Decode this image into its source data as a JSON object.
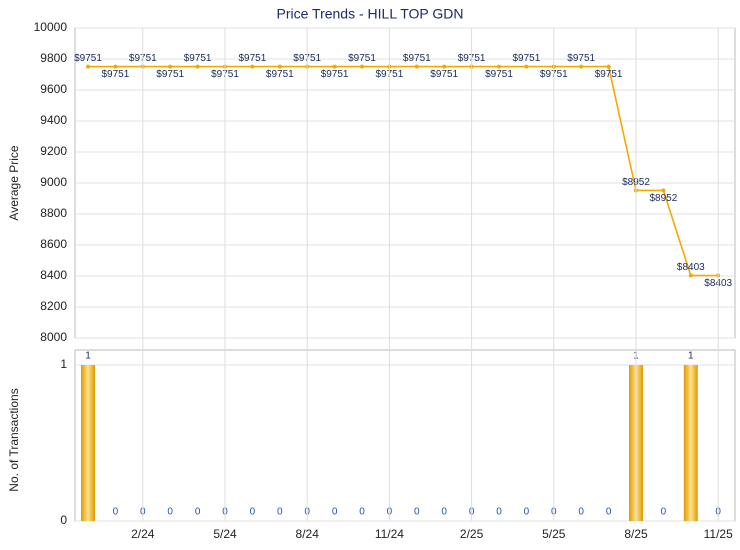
{
  "chart_data": [
    {
      "type": "line",
      "title": "Price Trends - HILL TOP GDN",
      "ylabel": "Average Price",
      "color": "#f5a800",
      "values": [
        9751,
        9751,
        9751,
        9751,
        9751,
        9751,
        9751,
        9751,
        9751,
        9751,
        9751,
        9751,
        9751,
        9751,
        9751,
        9751,
        9751,
        9751,
        9751,
        9751,
        8952,
        8952,
        8403,
        8403
      ],
      "value_labels": [
        "$9751",
        "$9751",
        "$9751",
        "$9751",
        "$9751",
        "$9751",
        "$9751",
        "$9751",
        "$9751",
        "$9751",
        "$9751",
        "$9751",
        "$9751",
        "$9751",
        "$9751",
        "$9751",
        "$9751",
        "$9751",
        "$9751",
        "$9751",
        "$8952",
        "$8952",
        "$8403",
        "$8403"
      ],
      "ylim": [
        8000,
        10000
      ],
      "yticks": [
        8000,
        8200,
        8400,
        8600,
        8800,
        9000,
        9200,
        9400,
        9600,
        9800,
        10000
      ],
      "grid": true
    },
    {
      "type": "bar",
      "ylabel": "No. of Transactions",
      "color": "#f5a800",
      "categories": [
        null,
        null,
        "2/24",
        null,
        null,
        "5/24",
        null,
        null,
        "8/24",
        null,
        null,
        "11/24",
        null,
        null,
        "2/25",
        null,
        null,
        "5/25",
        null,
        null,
        "8/25",
        null,
        null,
        "11/25"
      ],
      "values": [
        1,
        0,
        0,
        0,
        0,
        0,
        0,
        0,
        0,
        0,
        0,
        0,
        0,
        0,
        0,
        0,
        0,
        0,
        0,
        0,
        1,
        0,
        1,
        0
      ],
      "ylim": [
        0,
        1
      ],
      "yticks": [
        0,
        1
      ],
      "grid": true
    }
  ]
}
